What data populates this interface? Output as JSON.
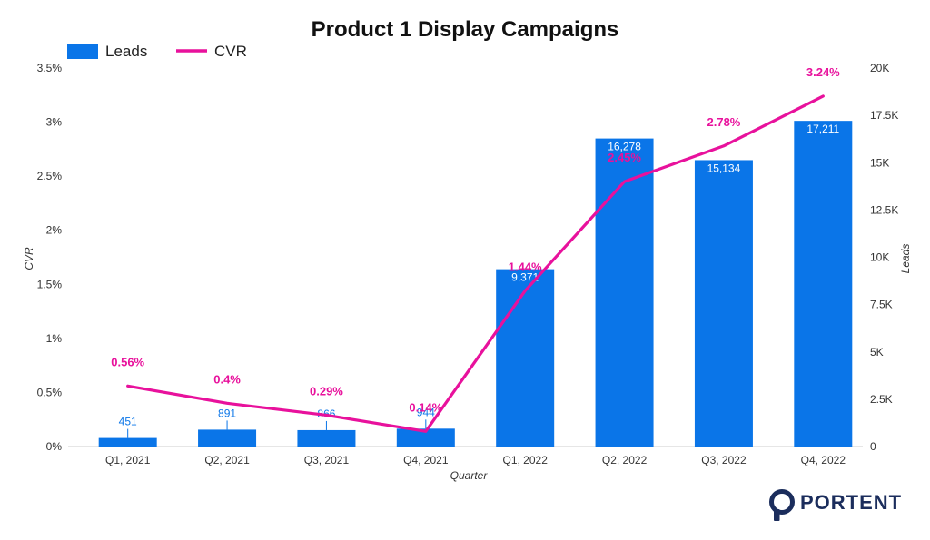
{
  "chart_data": {
    "type": "bar",
    "title": "Product 1 Display Campaigns",
    "xlabel": "Quarter",
    "ylabel_left": "CVR",
    "ylabel_right": "Leads",
    "categories": [
      "Q1, 2021",
      "Q2, 2021",
      "Q3, 2021",
      "Q4, 2021",
      "Q1, 2022",
      "Q2, 2022",
      "Q3, 2022",
      "Q4, 2022"
    ],
    "series": [
      {
        "name": "Leads",
        "type": "bar",
        "axis": "right",
        "color": "#0a75e8",
        "values": [
          451,
          891,
          866,
          944,
          9371,
          16278,
          15134,
          17211
        ],
        "labels": [
          "451",
          "891",
          "866",
          "944",
          "9,371",
          "16,278",
          "15,134",
          "17,211"
        ]
      },
      {
        "name": "CVR",
        "type": "line",
        "axis": "left",
        "color": "#e8119c",
        "values": [
          0.56,
          0.4,
          0.29,
          0.14,
          1.44,
          2.45,
          2.78,
          3.24
        ],
        "labels": [
          "0.56%",
          "0.4%",
          "0.29%",
          "0.14%",
          "1.44%",
          "2.45%",
          "2.78%",
          "3.24%"
        ]
      }
    ],
    "ylim_left": [
      0,
      3.5
    ],
    "ylim_right": [
      0,
      20000
    ],
    "left_ticks": [
      {
        "value": 0,
        "label": "0%"
      },
      {
        "value": 0.5,
        "label": "0.5%"
      },
      {
        "value": 1,
        "label": "1%"
      },
      {
        "value": 1.5,
        "label": "1.5%"
      },
      {
        "value": 2,
        "label": "2%"
      },
      {
        "value": 2.5,
        "label": "2.5%"
      },
      {
        "value": 3,
        "label": "3%"
      },
      {
        "value": 3.5,
        "label": "3.5%"
      }
    ],
    "right_ticks": [
      {
        "value": 0,
        "label": "0"
      },
      {
        "value": 2500,
        "label": "2.5K"
      },
      {
        "value": 5000,
        "label": "5K"
      },
      {
        "value": 7500,
        "label": "7.5K"
      },
      {
        "value": 10000,
        "label": "10K"
      },
      {
        "value": 12500,
        "label": "12.5K"
      },
      {
        "value": 15000,
        "label": "15K"
      },
      {
        "value": 17500,
        "label": "17.5K"
      },
      {
        "value": 20000,
        "label": "20K"
      }
    ],
    "legend": "top-left",
    "grid": false
  },
  "brand": {
    "name": "PORTENT",
    "color": "#1b2d5c"
  }
}
